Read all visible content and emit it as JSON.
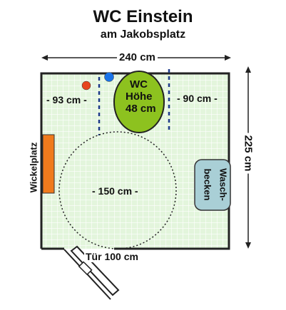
{
  "header": {
    "title": "WC Einstein",
    "subtitle": "am Jakobsplatz"
  },
  "dimensions": {
    "width": "240 cm",
    "depth": "225 cm",
    "left_gap": "- 93 cm -",
    "right_gap": "- 90 cm -",
    "turning_circle": "- 150 cm -",
    "door": "Tür 100 cm"
  },
  "fixtures": {
    "wc_line1": "WC",
    "wc_line2": "Höhe",
    "wc_line3": "48 cm",
    "sink_line1": "Wasch-",
    "sink_line2": "becken",
    "changing_table": "Wickelplatz"
  },
  "colors": {
    "floor": "#dff3d8",
    "wc": "#8dc21f",
    "changing_table": "#f07a1c",
    "sink": "#a9cfd6",
    "red_button": "#e8451f",
    "blue_button": "#1a73e8"
  }
}
